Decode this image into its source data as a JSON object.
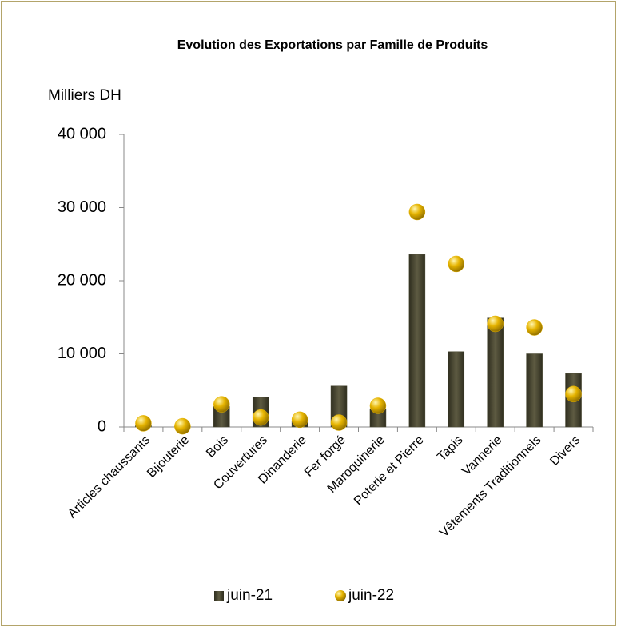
{
  "chart_data": {
    "type": "bar",
    "title": "Evolution des Exportations  par Famille de Produits",
    "y_label": "Milliers DH",
    "categories": [
      "Articles chaussants",
      "Bijouterie",
      "Bois",
      "Couvertures",
      "Dinanderie",
      "Fer forgé",
      "Maroquinerie",
      "Poterie et Pierre",
      "Tapis",
      "Vannerie",
      "Vêtements Traditionnels",
      "Divers"
    ],
    "series": [
      {
        "name": "juin-21",
        "type": "bar",
        "color": "#4a4832",
        "values": [
          300,
          50,
          2800,
          4100,
          800,
          5600,
          2500,
          23600,
          10300,
          14900,
          10000,
          7300
        ]
      },
      {
        "name": "juin-22",
        "type": "scatter",
        "color": "#e6b400",
        "values": [
          500,
          100,
          3100,
          1300,
          1000,
          600,
          2900,
          29400,
          22300,
          14100,
          13600,
          4500
        ]
      }
    ],
    "ylim": [
      0,
      40000
    ],
    "yticks": [
      {
        "value": 0,
        "label": "0"
      },
      {
        "value": 10000,
        "label": "10 000"
      },
      {
        "value": 20000,
        "label": "20 000"
      },
      {
        "value": 30000,
        "label": "30 000"
      },
      {
        "value": 40000,
        "label": "40 000"
      }
    ],
    "legend": "bottom"
  }
}
